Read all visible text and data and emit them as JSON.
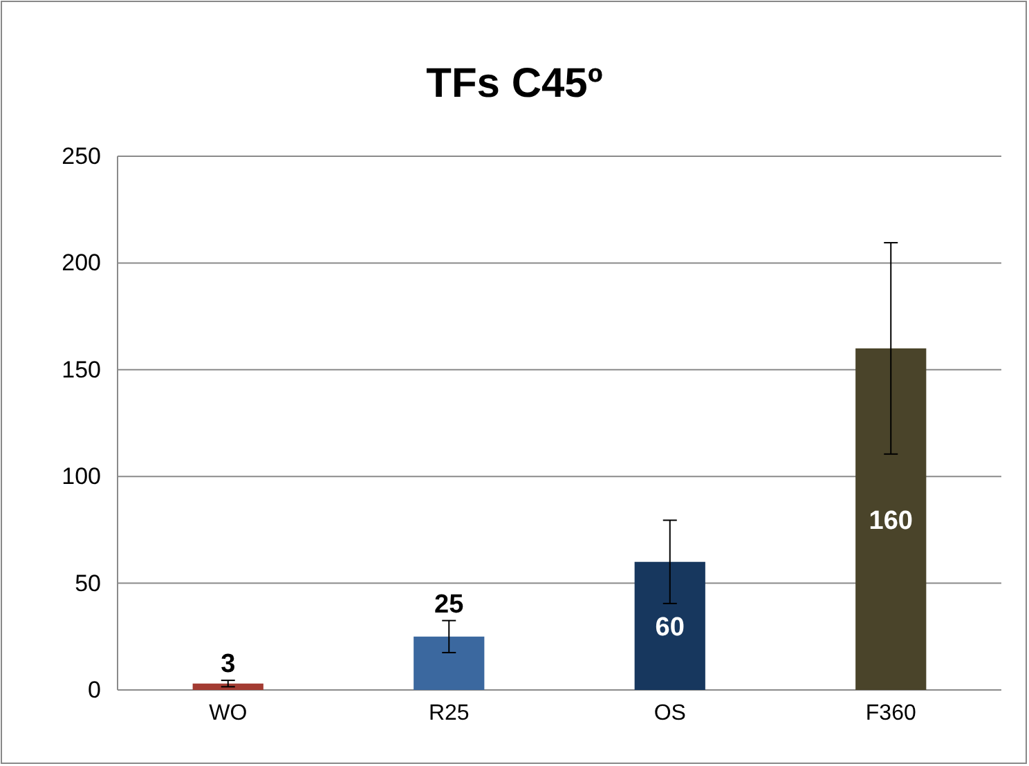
{
  "chart_data": {
    "type": "bar",
    "title": "TFs C45º",
    "categories": [
      "WO",
      "R25",
      "OS",
      "F360"
    ],
    "values": [
      3,
      25,
      60,
      160
    ],
    "colors": [
      "#a33b32",
      "#3b689f",
      "#17375e",
      "#4a442a"
    ],
    "errors": [
      1.5,
      7.5,
      19.5,
      49.5
    ],
    "ylim": [
      0,
      250
    ],
    "yticks": [
      0,
      50,
      100,
      150,
      200,
      250
    ],
    "grid": "y",
    "data_labels": true
  }
}
